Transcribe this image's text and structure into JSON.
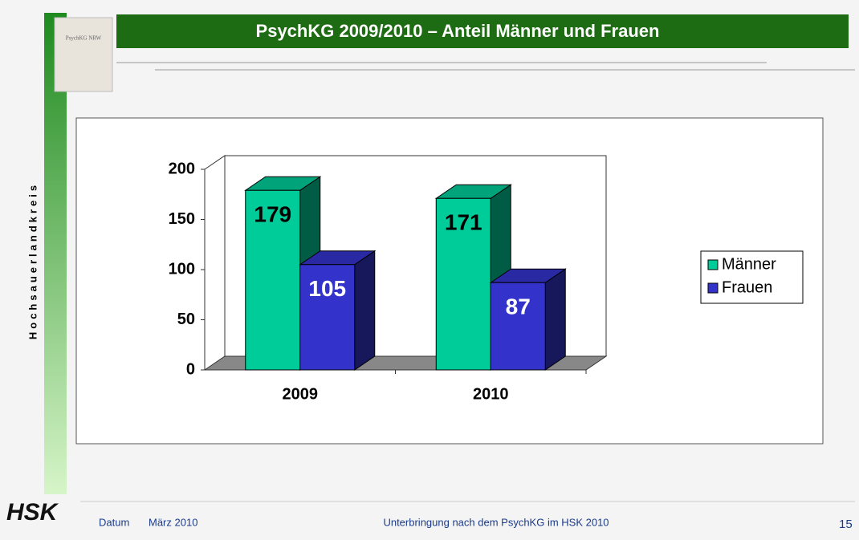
{
  "slide": {
    "title": "PsychKG 2009/2010 – Anteil Männer und Frauen",
    "side_text": "Hochsauerlandkreis",
    "book_title": "PsychKG NRW",
    "logo": "HSK",
    "footer": {
      "label": "Datum",
      "date": "März 2010",
      "center": "Unterbringung nach dem PsychKG im HSK 2010",
      "page": "15"
    }
  },
  "chart_data": {
    "type": "bar3d",
    "categories": [
      "2009",
      "2010"
    ],
    "series": [
      {
        "name": "Männer",
        "color": "#00cc99",
        "values": [
          179,
          171
        ]
      },
      {
        "name": "Frauen",
        "color": "#3333cc",
        "values": [
          105,
          87
        ]
      }
    ],
    "ylim": [
      0,
      200
    ],
    "yticks": [
      0,
      50,
      100,
      150,
      200
    ],
    "legend": "right"
  }
}
